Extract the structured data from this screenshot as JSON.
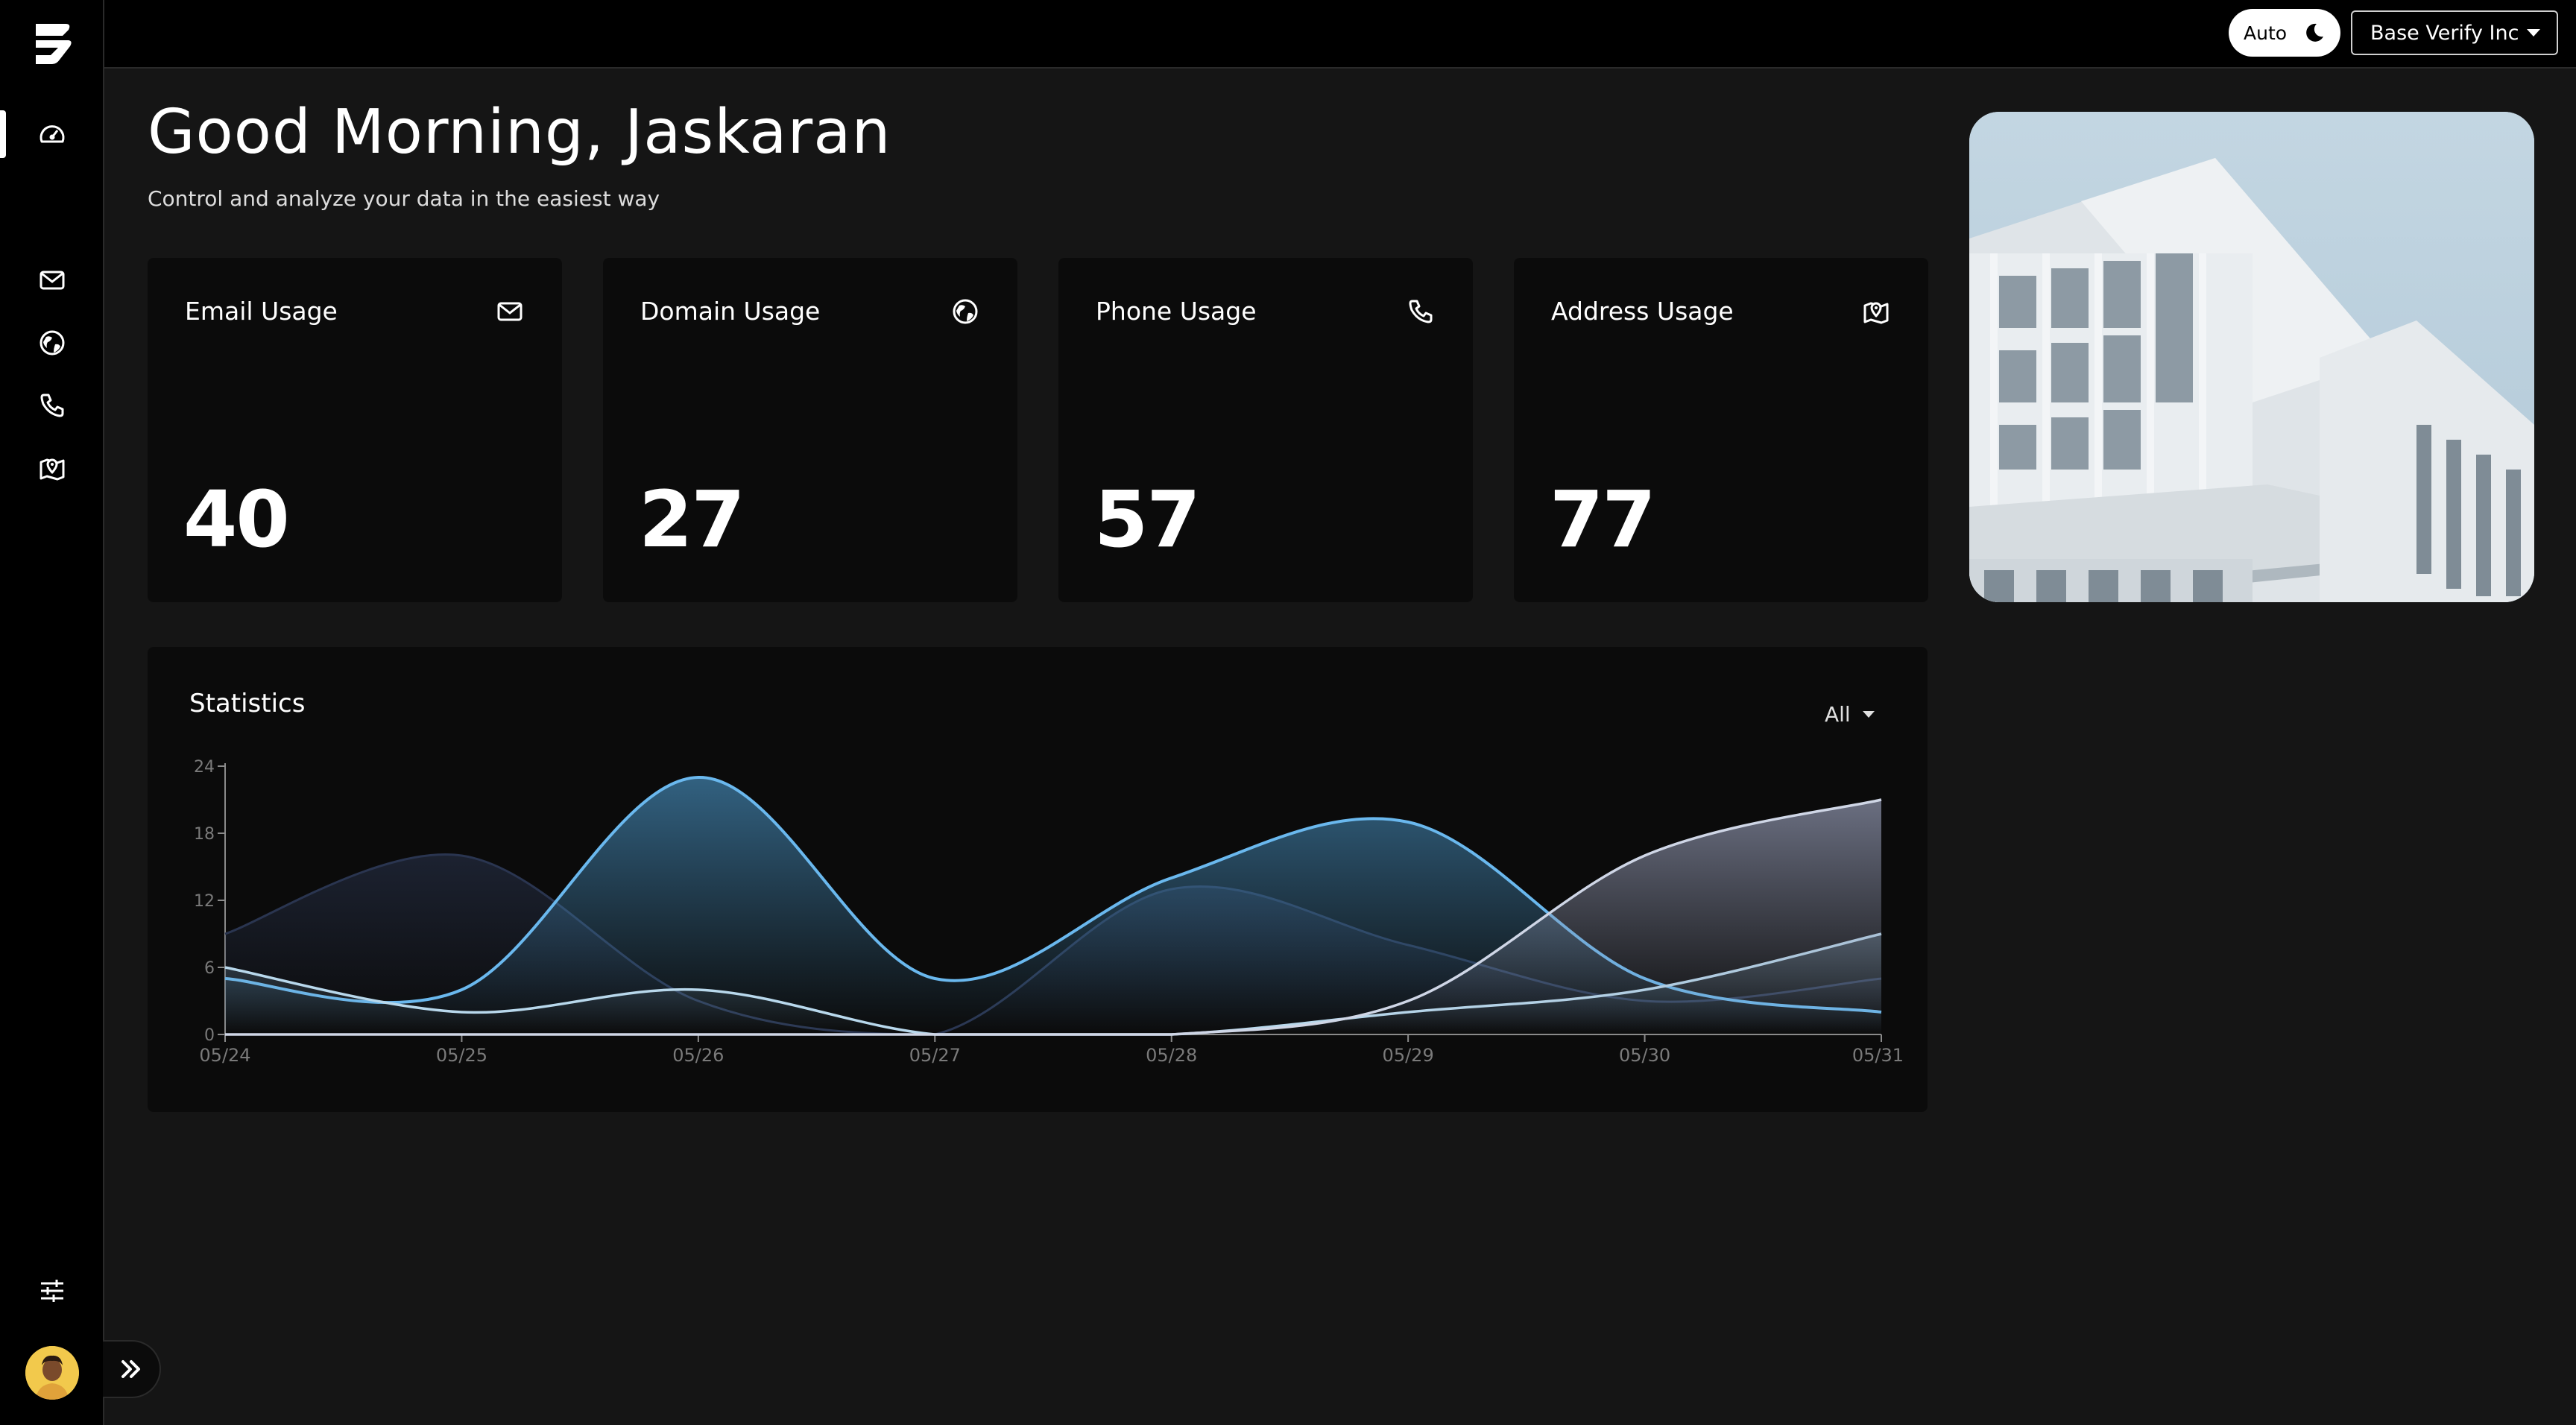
{
  "header": {
    "theme_label": "Auto",
    "org_name": "Base Verify Inc"
  },
  "main": {
    "greeting": "Good Morning, Jaskaran",
    "subtitle": "Control and analyze your data in the easiest way"
  },
  "sidebar": {
    "items": [
      {
        "icon": "dashboard-gauge-icon",
        "active": true
      },
      {
        "icon": "mail-icon"
      },
      {
        "icon": "globe-icon"
      },
      {
        "icon": "phone-icon"
      },
      {
        "icon": "map-pin-icon"
      }
    ],
    "bottom_icon": "sliders-icon"
  },
  "cards": [
    {
      "title": "Email Usage",
      "value": "40",
      "icon": "mail-icon"
    },
    {
      "title": "Domain Usage",
      "value": "27",
      "icon": "globe-icon"
    },
    {
      "title": "Phone Usage",
      "value": "57",
      "icon": "phone-icon"
    },
    {
      "title": "Address Usage",
      "value": "77",
      "icon": "map-pin-icon"
    }
  ],
  "statistics": {
    "title": "Statistics",
    "filter_value": "All"
  },
  "colors": {
    "background": "#151515",
    "panel": "#0b0b0b",
    "accent_blue": "#6ab8ee",
    "light_series": "#cfd6e6"
  },
  "chart_data": {
    "type": "area",
    "categories": [
      "05/24",
      "05/25",
      "05/26",
      "05/27",
      "05/28",
      "05/29",
      "05/30",
      "05/31"
    ],
    "ylim": [
      0,
      24
    ],
    "yticks": [
      0,
      6,
      12,
      18,
      24
    ],
    "series": [
      {
        "values": [
          9,
          16,
          3,
          0,
          13,
          8,
          3,
          5
        ]
      },
      {
        "values": [
          5,
          4,
          23,
          5,
          14,
          19,
          5,
          2
        ]
      },
      {
        "values": [
          6,
          2,
          4,
          0,
          0,
          2,
          4,
          9
        ]
      },
      {
        "values": [
          0,
          0,
          0,
          0,
          0,
          3,
          16,
          21
        ]
      }
    ]
  }
}
